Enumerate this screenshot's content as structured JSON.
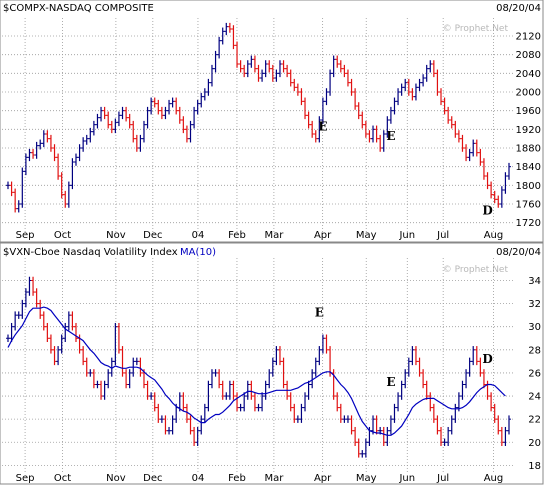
{
  "chart_data": [
    {
      "type": "line",
      "title": "$COMPX-NASDAQ COMPOSITE",
      "date": "08/20/04",
      "watermark": "© Prophet.Net",
      "xlabels": [
        "Sep",
        "Oct",
        "Nov",
        "Dec",
        "04",
        "Feb",
        "Mar",
        "Apr",
        "May",
        "Jun",
        "Jul",
        "Aug"
      ],
      "yticks": [
        1720,
        1760,
        1800,
        1840,
        1880,
        1920,
        1960,
        2000,
        2040,
        2080,
        2120
      ],
      "ylim": [
        1700,
        2150
      ],
      "colors": {
        "up": "#000080",
        "down": "#e01010"
      },
      "series": [
        {
          "values": [
            1800,
            1785,
            1750,
            1760,
            1830,
            1860,
            1870,
            1865,
            1885,
            1890,
            1910,
            1900,
            1880,
            1860,
            1820,
            1780,
            1760,
            1800,
            1850,
            1860,
            1880,
            1895,
            1900,
            1915,
            1930,
            1945,
            1960,
            1950,
            1930,
            1920,
            1935,
            1950,
            1960,
            1945,
            1930,
            1900,
            1880,
            1900,
            1930,
            1960,
            1980,
            1975,
            1960,
            1950,
            1960,
            1975,
            1980,
            1960,
            1940,
            1920,
            1900,
            1930,
            1960,
            1975,
            1990,
            2000,
            2020,
            2050,
            2080,
            2110,
            2130,
            2140,
            2135,
            2100,
            2060,
            2050,
            2040,
            2060,
            2070,
            2050,
            2030,
            2040,
            2060,
            2050,
            2030,
            2040,
            2060,
            2050,
            2040,
            2020,
            2010,
            2000,
            1980,
            1950,
            1930,
            1910,
            1900,
            1940,
            1980,
            2000,
            2040,
            2070,
            2060,
            2050,
            2040,
            2020,
            2000,
            1970,
            1950,
            1930,
            1910,
            1900,
            1920,
            1900,
            1880,
            1910,
            1940,
            1960,
            1980,
            2000,
            2010,
            2020,
            2000,
            1990,
            2010,
            2020,
            2030,
            2050,
            2060,
            2040,
            2000,
            1980,
            1960,
            1940,
            1930,
            1910,
            1900,
            1880,
            1860,
            1870,
            1890,
            1870,
            1850,
            1820,
            1800,
            1780,
            1770,
            1760,
            1790,
            1820,
            1840
          ],
          "annotations": [
            {
              "label": "E",
              "index": 88
            },
            {
              "label": "E",
              "index": 107
            },
            {
              "label": "D",
              "index": 134
            }
          ]
        }
      ]
    },
    {
      "type": "line",
      "title": "$VXN-Cboe Nasdaq Volatility Index",
      "subtitle": "MA(10)",
      "date": "08/20/04",
      "watermark": "© Prophet.Net",
      "xlabels": [
        "Sep",
        "Oct",
        "Nov",
        "Dec",
        "04",
        "Feb",
        "Mar",
        "Apr",
        "May",
        "Jun",
        "Jul",
        "Aug"
      ],
      "yticks": [
        18,
        20,
        22,
        24,
        26,
        28,
        30,
        32,
        34
      ],
      "ylim": [
        17.6,
        35.6
      ],
      "colors": {
        "up": "#000080",
        "down": "#e01010",
        "ma": "#0000c0"
      },
      "series": [
        {
          "values": [
            29,
            30,
            31,
            31,
            32,
            33,
            34,
            33,
            32,
            31,
            30,
            29,
            28,
            27,
            28,
            29,
            30,
            31,
            30,
            29,
            28,
            27,
            26,
            26,
            25,
            25,
            24,
            25,
            26,
            27,
            30,
            28,
            26,
            25,
            26,
            27,
            27,
            26,
            25,
            24,
            24,
            23,
            22,
            22,
            21,
            21,
            22,
            23,
            24,
            23,
            22,
            21,
            20,
            21,
            22,
            23,
            25,
            26,
            26,
            25,
            24,
            24,
            25,
            24,
            23,
            23,
            24,
            25,
            24,
            23,
            23,
            24,
            25,
            26,
            27,
            28,
            27,
            25,
            24,
            23,
            22,
            22,
            23,
            24,
            25,
            26,
            27,
            28,
            29,
            28,
            26,
            24,
            23,
            22,
            22,
            22,
            21,
            20,
            19,
            19,
            20,
            21,
            22,
            21,
            21,
            20,
            21,
            22,
            23,
            24,
            25,
            26,
            27,
            28,
            27,
            26,
            25,
            24,
            23,
            22,
            21,
            20,
            20,
            21,
            22,
            23,
            24,
            25,
            26,
            27,
            28,
            27,
            26,
            25,
            24,
            23,
            22,
            21,
            20,
            21,
            22
          ],
          "ma": [
            28.2,
            28.8,
            29.3,
            29.7,
            30.1,
            30.7,
            31.3,
            31.6,
            31.6,
            31.6,
            31.7,
            31.6,
            31.4,
            31,
            30.6,
            30.2,
            29.8,
            29.6,
            29.4,
            29.2,
            29,
            28.8,
            28.4,
            28,
            27.7,
            27.3,
            26.9,
            26.7,
            26.6,
            26.4,
            26.6,
            26.5,
            26.4,
            26.4,
            26.5,
            26.5,
            26.5,
            26.4,
            26.1,
            25.8,
            25.6,
            25.4,
            25,
            24.6,
            24.1,
            23.8,
            23.4,
            23.1,
            22.9,
            22.7,
            22.6,
            22.4,
            22.1,
            21.9,
            21.7,
            21.7,
            22,
            22.2,
            22.4,
            22.4,
            22.6,
            22.9,
            23.2,
            23.6,
            23.8,
            24,
            24.2,
            24.4,
            24.4,
            24.3,
            24.2,
            24.2,
            24.2,
            24.3,
            24.4,
            24.5,
            24.5,
            24.5,
            24.5,
            24.5,
            24.6,
            24.7,
            24.9,
            25.1,
            25.2,
            25.4,
            25.6,
            25.8,
            26,
            26.1,
            26.1,
            25.8,
            25.4,
            25,
            24.7,
            24.3,
            23.8,
            23.1,
            22.4,
            21.8,
            21.4,
            21,
            20.9,
            20.8,
            20.8,
            20.7,
            20.6,
            20.6,
            20.8,
            21.1,
            21.4,
            21.9,
            22.4,
            23,
            23.3,
            23.5,
            23.7,
            23.8,
            23.8,
            23.8,
            23.6,
            23.4,
            23.2,
            23,
            22.9,
            22.9,
            22.9,
            23,
            23.2,
            23.5,
            23.9,
            24.3,
            24.6,
            24.8,
            25,
            25,
            24.9,
            24.6,
            24.3,
            24
          ],
          "annotations": [
            {
              "label": "E",
              "index": 87
            },
            {
              "label": "E",
              "index": 107
            },
            {
              "label": "D",
              "index": 134
            }
          ]
        }
      ]
    }
  ]
}
